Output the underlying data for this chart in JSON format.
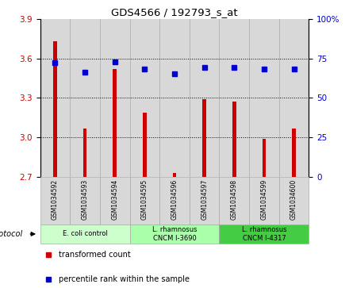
{
  "title": "GDS4566 / 192793_s_at",
  "samples": [
    "GSM1034592",
    "GSM1034593",
    "GSM1034594",
    "GSM1034595",
    "GSM1034596",
    "GSM1034597",
    "GSM1034598",
    "GSM1034599",
    "GSM1034600"
  ],
  "transformed_counts": [
    3.73,
    3.07,
    3.52,
    3.19,
    2.73,
    3.29,
    3.27,
    2.99,
    3.07
  ],
  "percentile_ranks": [
    72,
    66,
    73,
    68,
    65,
    69,
    69,
    68,
    68
  ],
  "ylim_left": [
    2.7,
    3.9
  ],
  "ylim_right": [
    0,
    100
  ],
  "yticks_left": [
    2.7,
    3.0,
    3.3,
    3.6,
    3.9
  ],
  "yticks_right": [
    0,
    25,
    50,
    75,
    100
  ],
  "ytick_labels_right": [
    "0",
    "25",
    "50",
    "75",
    "100%"
  ],
  "bar_color": "#cc0000",
  "dot_color": "#0000cc",
  "groups": [
    {
      "label": "E. coli control",
      "start": 0,
      "end": 3,
      "color": "#ccffcc"
    },
    {
      "label": "L. rhamnosus\nCNCM I-3690",
      "start": 3,
      "end": 6,
      "color": "#aaffaa"
    },
    {
      "label": "L. rhamnosus\nCNCM I-4317",
      "start": 6,
      "end": 9,
      "color": "#44cc44"
    }
  ],
  "protocol_label": "protocol",
  "legend_items": [
    {
      "color": "#cc0000",
      "label": "transformed count"
    },
    {
      "color": "#0000cc",
      "label": "percentile rank within the sample"
    }
  ],
  "left_axis_color": "#cc0000",
  "right_axis_color": "#0000cc",
  "bar_bottom": 2.7,
  "grid_yticks": [
    3.0,
    3.3,
    3.6
  ],
  "col_bg": "#d8d8d8",
  "col_border": "#aaaaaa"
}
